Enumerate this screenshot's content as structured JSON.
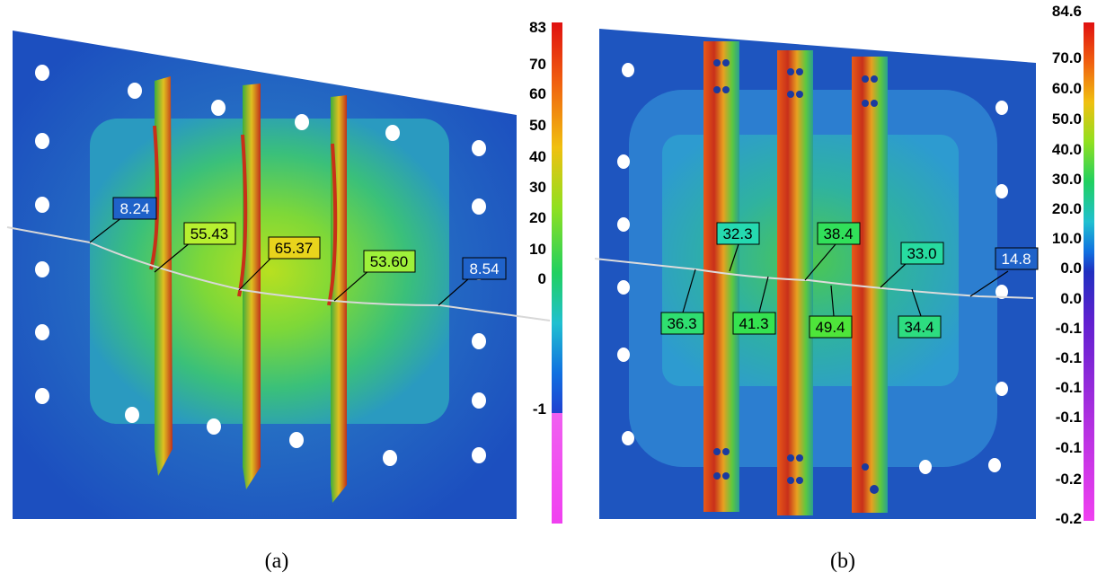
{
  "panel_a": {
    "caption": "(a)",
    "scale_ticks": [
      "83",
      "70",
      "60",
      "50",
      "40",
      "30",
      "20",
      "10",
      "0",
      "-1"
    ],
    "callouts": [
      {
        "text": "8.24",
        "bg": "#1f62c9",
        "fg": "#ffffff"
      },
      {
        "text": "55.43",
        "bg": "#b7f030",
        "fg": "#000000"
      },
      {
        "text": "65.37",
        "bg": "#e8d41c",
        "fg": "#000000"
      },
      {
        "text": "53.60",
        "bg": "#9ef03a",
        "fg": "#000000"
      },
      {
        "text": "8.54",
        "bg": "#1f62c9",
        "fg": "#ffffff"
      }
    ]
  },
  "panel_b": {
    "caption": "(b)",
    "scale_ticks": [
      "84.6",
      "70.0",
      "60.0",
      "50.0",
      "40.0",
      "30.0",
      "20.0",
      "10.0",
      "0.0",
      "0.0",
      "-0.1",
      "-0.1",
      "-0.1",
      "-0.1",
      "-0.1",
      "-0.2",
      "-0.2"
    ],
    "callouts": [
      {
        "text": "32.3",
        "bg": "#25d9b0",
        "fg": "#000000"
      },
      {
        "text": "38.4",
        "bg": "#31e05a",
        "fg": "#000000"
      },
      {
        "text": "33.0",
        "bg": "#27dba0",
        "fg": "#000000"
      },
      {
        "text": "14.8",
        "bg": "#1f62c9",
        "fg": "#ffffff"
      },
      {
        "text": "36.3",
        "bg": "#2fde70",
        "fg": "#000000"
      },
      {
        "text": "41.3",
        "bg": "#35e250",
        "fg": "#000000"
      },
      {
        "text": "49.4",
        "bg": "#4ee53a",
        "fg": "#000000"
      },
      {
        "text": "34.4",
        "bg": "#2ddd80",
        "fg": "#000000"
      }
    ]
  }
}
